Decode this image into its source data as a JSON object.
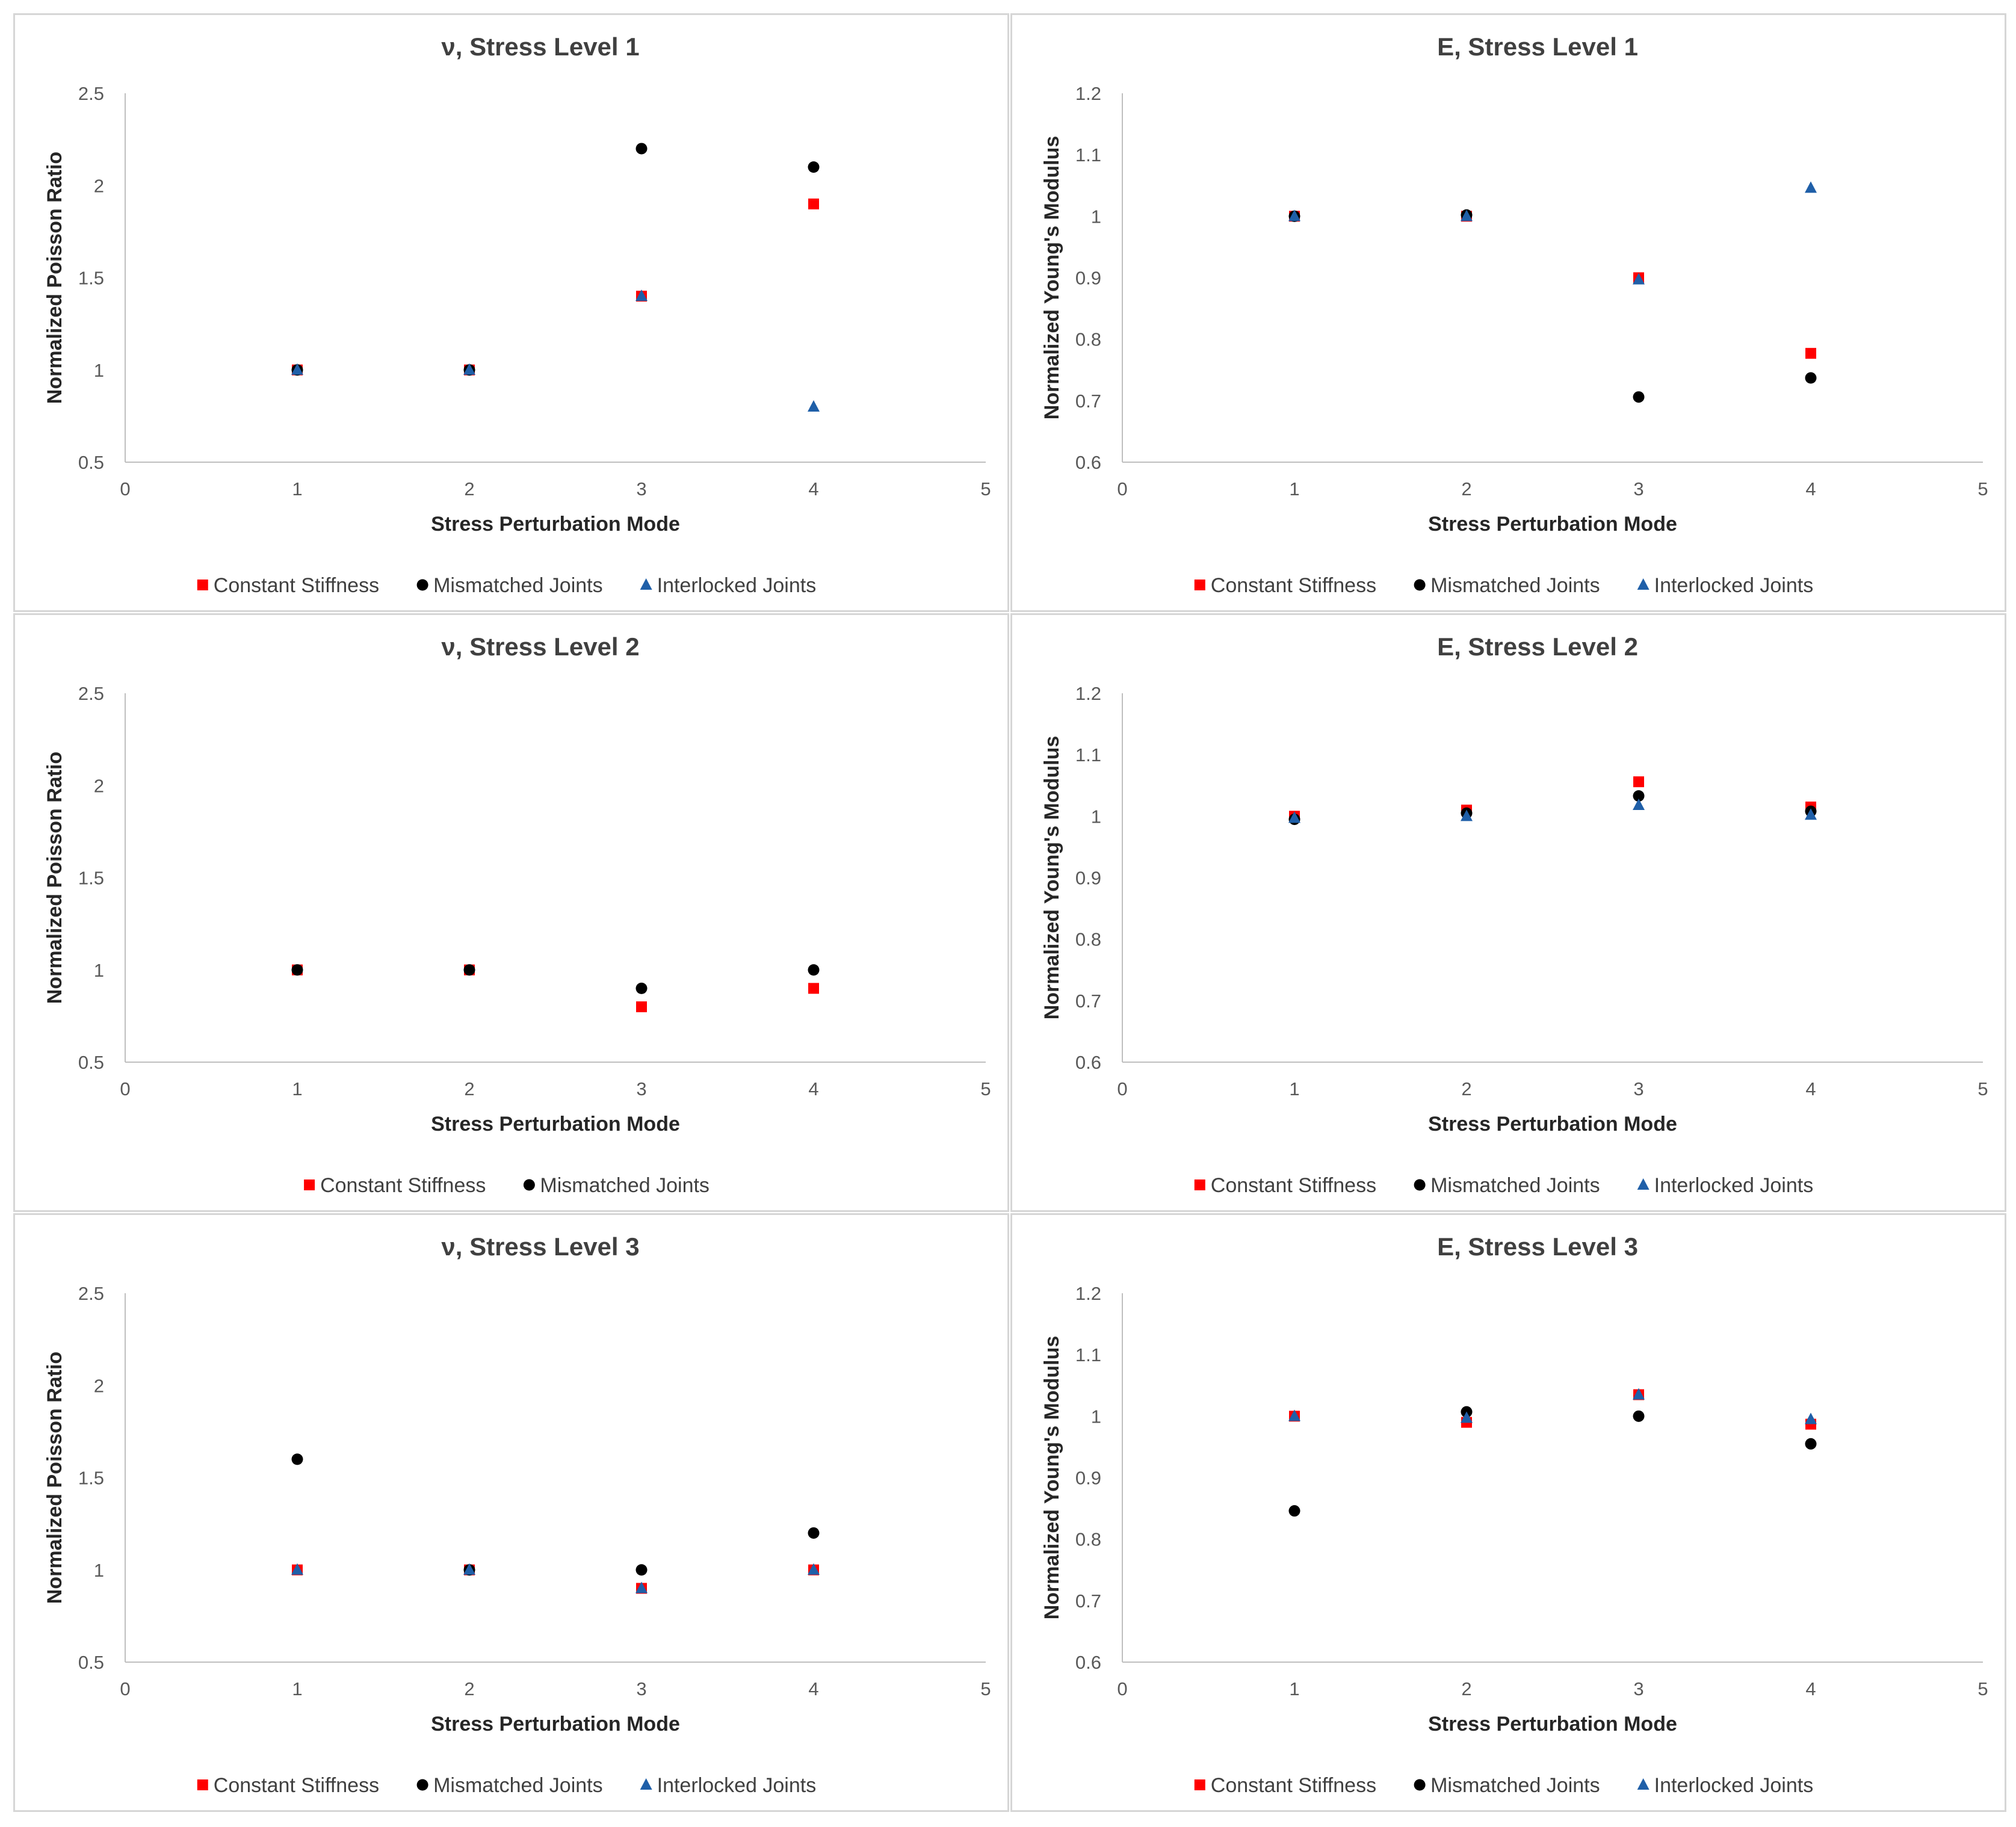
{
  "colors": {
    "constant": "#ff0000",
    "mismatched": "#000000",
    "interlocked": "#1f5fa8",
    "axis": "#bfbfbf",
    "border": "#d6d6d6"
  },
  "chart_data": [
    {
      "type": "scatter",
      "title": "ν, Stress Level 1",
      "xlabel": "Stress Perturbation Mode",
      "ylabel": "Normalized Poisson Ratio",
      "xlim": [
        0,
        5
      ],
      "ylim": [
        0.5,
        2.5
      ],
      "xticks": [
        "0",
        "1",
        "2",
        "3",
        "4",
        "5"
      ],
      "yticks": [
        "0.5",
        "1",
        "1.5",
        "2",
        "2.5"
      ],
      "series": [
        {
          "name": "Constant Stiffness",
          "marker": "square",
          "x": [
            1,
            2,
            3,
            4
          ],
          "y": [
            1.0,
            1.0,
            1.4,
            1.9
          ]
        },
        {
          "name": "Mismatched Joints",
          "marker": "circle",
          "x": [
            1,
            2,
            3,
            4
          ],
          "y": [
            1.0,
            1.0,
            2.2,
            2.1
          ]
        },
        {
          "name": "Interlocked Joints",
          "marker": "triangle",
          "x": [
            1,
            2,
            3,
            4
          ],
          "y": [
            1.0,
            1.0,
            1.4,
            0.8
          ]
        }
      ]
    },
    {
      "type": "scatter",
      "title": "E, Stress Level 1",
      "xlabel": "Stress Perturbation Mode",
      "ylabel": "Normalized Young's Modulus",
      "xlim": [
        0,
        5
      ],
      "ylim": [
        0.6,
        1.2
      ],
      "xticks": [
        "0",
        "1",
        "2",
        "3",
        "4",
        "5"
      ],
      "yticks": [
        "0.6",
        "0.7",
        "0.8",
        "0.9",
        "1",
        "1.1",
        "1.2"
      ],
      "series": [
        {
          "name": "Constant Stiffness",
          "marker": "square",
          "x": [
            1,
            2,
            3,
            4
          ],
          "y": [
            1.0,
            1.0,
            0.9,
            0.777
          ]
        },
        {
          "name": "Mismatched Joints",
          "marker": "circle",
          "x": [
            1,
            2,
            3,
            4
          ],
          "y": [
            1.0,
            1.002,
            0.706,
            0.737
          ]
        },
        {
          "name": "Interlocked Joints",
          "marker": "triangle",
          "x": [
            1,
            2,
            3,
            4
          ],
          "y": [
            1.0,
            1.0,
            0.897,
            1.046
          ]
        }
      ]
    },
    {
      "type": "scatter",
      "title": "ν, Stress Level 2",
      "xlabel": "Stress Perturbation Mode",
      "ylabel": "Normalized Poisson Ratio",
      "xlim": [
        0,
        5
      ],
      "ylim": [
        0.5,
        2.5
      ],
      "xticks": [
        "0",
        "1",
        "2",
        "3",
        "4",
        "5"
      ],
      "yticks": [
        "0.5",
        "1",
        "1.5",
        "2",
        "2.5"
      ],
      "series": [
        {
          "name": "Constant Stiffness",
          "marker": "square",
          "x": [
            1,
            2,
            3,
            4
          ],
          "y": [
            1.0,
            1.0,
            0.8,
            0.9
          ]
        },
        {
          "name": "Mismatched Joints",
          "marker": "circle",
          "x": [
            1,
            2,
            3,
            4
          ],
          "y": [
            1.0,
            1.0,
            0.9,
            1.0
          ]
        }
      ]
    },
    {
      "type": "scatter",
      "title": "E, Stress Level 2",
      "xlabel": "Stress Perturbation Mode",
      "ylabel": "Normalized Young's Modulus",
      "xlim": [
        0,
        5
      ],
      "ylim": [
        0.6,
        1.2
      ],
      "xticks": [
        "0",
        "1",
        "2",
        "3",
        "4",
        "5"
      ],
      "yticks": [
        "0.6",
        "0.7",
        "0.8",
        "0.9",
        "1",
        "1.1",
        "1.2"
      ],
      "series": [
        {
          "name": "Constant Stiffness",
          "marker": "square",
          "x": [
            1,
            2,
            3,
            4
          ],
          "y": [
            1.0,
            1.01,
            1.056,
            1.015
          ]
        },
        {
          "name": "Mismatched Joints",
          "marker": "circle",
          "x": [
            1,
            2,
            3,
            4
          ],
          "y": [
            0.995,
            1.005,
            1.033,
            1.008
          ]
        },
        {
          "name": "Interlocked Joints",
          "marker": "triangle",
          "x": [
            1,
            2,
            3,
            4
          ],
          "y": [
            0.997,
            1.0,
            1.018,
            1.002
          ]
        }
      ]
    },
    {
      "type": "scatter",
      "title": "ν, Stress Level 3",
      "xlabel": "Stress Perturbation Mode",
      "ylabel": "Normalized Poisson Ratio",
      "xlim": [
        0,
        5
      ],
      "ylim": [
        0.5,
        2.5
      ],
      "xticks": [
        "0",
        "1",
        "2",
        "3",
        "4",
        "5"
      ],
      "yticks": [
        "0.5",
        "1",
        "1.5",
        "2",
        "2.5"
      ],
      "series": [
        {
          "name": "Constant Stiffness",
          "marker": "square",
          "x": [
            1,
            2,
            3,
            4
          ],
          "y": [
            1.0,
            1.0,
            0.9,
            1.0
          ]
        },
        {
          "name": "Mismatched Joints",
          "marker": "circle",
          "x": [
            1,
            2,
            3,
            4
          ],
          "y": [
            1.6,
            1.0,
            1.0,
            1.2
          ]
        },
        {
          "name": "Interlocked Joints",
          "marker": "triangle",
          "x": [
            1,
            2,
            3,
            4
          ],
          "y": [
            1.0,
            1.0,
            0.9,
            1.0
          ]
        }
      ]
    },
    {
      "type": "scatter",
      "title": "E, Stress Level 3",
      "xlabel": "Stress Perturbation Mode",
      "ylabel": "Normalized Young's Modulus",
      "xlim": [
        0,
        5
      ],
      "ylim": [
        0.6,
        1.2
      ],
      "xticks": [
        "0",
        "1",
        "2",
        "3",
        "4",
        "5"
      ],
      "yticks": [
        "0.6",
        "0.7",
        "0.8",
        "0.9",
        "1",
        "1.1",
        "1.2"
      ],
      "series": [
        {
          "name": "Constant Stiffness",
          "marker": "square",
          "x": [
            1,
            2,
            3,
            4
          ],
          "y": [
            1.0,
            0.99,
            1.035,
            0.987
          ]
        },
        {
          "name": "Mismatched Joints",
          "marker": "circle",
          "x": [
            1,
            2,
            3,
            4
          ],
          "y": [
            0.846,
            1.007,
            1.0,
            0.955
          ]
        },
        {
          "name": "Interlocked Joints",
          "marker": "triangle",
          "x": [
            1,
            2,
            3,
            4
          ],
          "y": [
            1.0,
            0.997,
            1.035,
            0.995
          ]
        }
      ]
    }
  ]
}
